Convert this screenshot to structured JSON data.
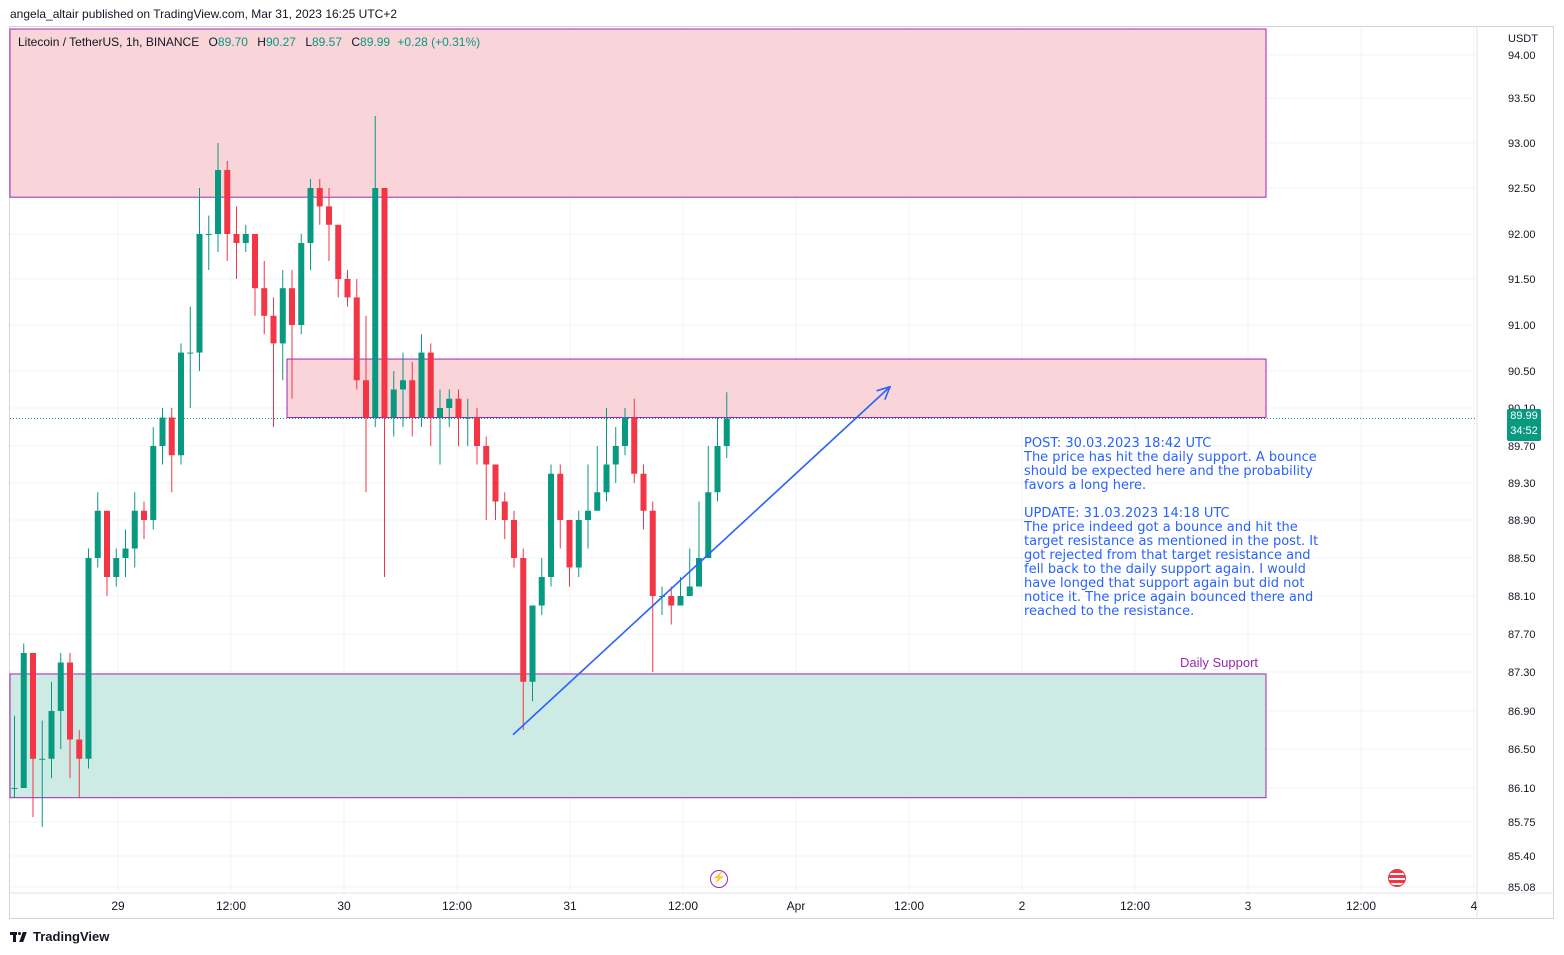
{
  "header": {
    "text": "angela_altair published on TradingView.com, Mar 31, 2023 16:25 UTC+2"
  },
  "legend": {
    "symbol": "Litecoin / TetherUS, 1h, BINANCE",
    "o_label": "O",
    "o": "89.70",
    "h_label": "H",
    "h": "90.27",
    "l_label": "L",
    "l": "89.57",
    "c_label": "C",
    "c": "89.99",
    "change": "+0.28 (+0.31%)"
  },
  "axis": {
    "unit": "USDT",
    "last_price": "89.99",
    "countdown": "34:52",
    "right_ticks": [
      "94.00",
      "93.50",
      "93.00",
      "92.50",
      "92.00",
      "91.50",
      "91.00",
      "90.50",
      "90.10",
      "89.70",
      "89.30",
      "88.90",
      "88.50",
      "88.10",
      "87.70",
      "87.30",
      "86.90",
      "86.50",
      "86.10",
      "85.75",
      "85.40",
      "85.08"
    ],
    "time_ticks": [
      "29",
      "12:00",
      "30",
      "12:00",
      "31",
      "12:00",
      "Apr",
      "12:00",
      "2",
      "12:00",
      "3",
      "12:00",
      "4"
    ]
  },
  "zones": {
    "daily_support_label": "Daily Support"
  },
  "note": {
    "text": "POST: 30.03.2023 18:42 UTC\nThe price has hit the daily support. A bounce should be expected here and the probability favors a long here.\n\nUPDATE: 31.03.2023 14:18 UTC\nThe price indeed got a bounce and hit the target resistance as mentioned in the post. It got rejected from that target resistance and fell back to the daily support again. I would have longed that support again but did not notice it. The price again bounced there and reached to the resistance."
  },
  "footer": {
    "brand": "TradingView"
  },
  "colors": {
    "up": "#089981",
    "down": "#f23645",
    "resistance_fill": "#f9d4d8",
    "support_fill": "#cdebe4",
    "zone_border": "#9c27b0",
    "arrow": "#2962ff"
  },
  "chart_data": {
    "type": "candlestick",
    "title": "Litecoin / TetherUS, 1h, BINANCE",
    "ylabel": "USDT",
    "ylim": [
      85.0,
      94.1
    ],
    "zones": [
      {
        "name": "upper-resistance",
        "low": 92.4,
        "high": 94.2
      },
      {
        "name": "target-resistance",
        "low": 90.0,
        "high": 90.63
      },
      {
        "name": "daily-support",
        "low": 86.0,
        "high": 87.28
      }
    ],
    "trend_arrow": {
      "from": [
        2.7,
        86.65
      ],
      "to": [
        10.8,
        90.33
      ]
    },
    "candles": [
      [
        86.1,
        86.1,
        86.85,
        86.0
      ],
      [
        86.1,
        87.5,
        87.6,
        86.1
      ],
      [
        87.5,
        86.4,
        87.5,
        85.8
      ],
      [
        86.4,
        86.4,
        86.8,
        85.7
      ],
      [
        86.4,
        86.9,
        87.2,
        86.2
      ],
      [
        86.9,
        87.4,
        87.5,
        86.5
      ],
      [
        87.4,
        86.6,
        87.5,
        86.2
      ],
      [
        86.6,
        86.4,
        86.7,
        86.0
      ],
      [
        86.4,
        88.5,
        88.6,
        86.3
      ],
      [
        88.5,
        89.0,
        89.2,
        88.4
      ],
      [
        89.0,
        88.3,
        89.0,
        88.1
      ],
      [
        88.3,
        88.5,
        88.6,
        88.2
      ],
      [
        88.5,
        88.6,
        88.8,
        88.3
      ],
      [
        88.6,
        89.0,
        89.2,
        88.4
      ],
      [
        89.0,
        88.9,
        89.1,
        88.7
      ],
      [
        88.9,
        89.7,
        89.9,
        88.8
      ],
      [
        89.7,
        90.0,
        90.1,
        89.5
      ],
      [
        90.0,
        89.6,
        90.1,
        89.2
      ],
      [
        89.6,
        90.7,
        90.8,
        89.5
      ],
      [
        90.7,
        90.7,
        91.2,
        90.1
      ],
      [
        90.7,
        92.0,
        92.5,
        90.5
      ],
      [
        92.0,
        92.0,
        92.2,
        91.6
      ],
      [
        92.0,
        92.7,
        93.0,
        91.8
      ],
      [
        92.7,
        92.0,
        92.8,
        91.7
      ],
      [
        92.0,
        91.9,
        92.3,
        91.5
      ],
      [
        91.9,
        92.0,
        92.1,
        91.8
      ],
      [
        92.0,
        91.4,
        92.0,
        91.1
      ],
      [
        91.4,
        91.1,
        91.7,
        90.9
      ],
      [
        91.1,
        90.8,
        91.3,
        89.9
      ],
      [
        90.8,
        91.4,
        91.6,
        90.4
      ],
      [
        91.4,
        91.0,
        91.6,
        90.2
      ],
      [
        91.0,
        91.9,
        92.0,
        90.9
      ],
      [
        91.9,
        92.5,
        92.6,
        91.6
      ],
      [
        92.5,
        92.3,
        92.6,
        92.1
      ],
      [
        92.3,
        92.1,
        92.5,
        91.7
      ],
      [
        92.1,
        91.5,
        92.1,
        91.3
      ],
      [
        91.5,
        91.3,
        91.6,
        91.2
      ],
      [
        91.3,
        90.4,
        91.5,
        90.3
      ],
      [
        90.4,
        90.0,
        91.1,
        89.2
      ],
      [
        90.0,
        92.5,
        93.3,
        89.9
      ],
      [
        92.5,
        90.0,
        92.5,
        88.3
      ],
      [
        90.0,
        90.3,
        90.5,
        89.8
      ],
      [
        90.3,
        90.4,
        90.7,
        89.9
      ],
      [
        90.4,
        90.0,
        90.6,
        89.8
      ],
      [
        90.0,
        90.7,
        90.9,
        89.9
      ],
      [
        90.7,
        90.0,
        90.8,
        89.7
      ],
      [
        90.0,
        90.1,
        90.3,
        89.5
      ],
      [
        90.1,
        90.2,
        90.3,
        89.9
      ],
      [
        90.2,
        90.0,
        90.3,
        89.7
      ],
      [
        90.0,
        90.0,
        90.2,
        89.7
      ],
      [
        90.0,
        89.7,
        90.1,
        89.5
      ],
      [
        89.7,
        89.5,
        89.8,
        88.9
      ],
      [
        89.5,
        89.1,
        89.5,
        88.9
      ],
      [
        89.1,
        88.9,
        89.2,
        88.7
      ],
      [
        88.9,
        88.5,
        89.0,
        88.4
      ],
      [
        88.5,
        87.2,
        88.6,
        86.7
      ],
      [
        87.2,
        88.0,
        88.0,
        87.0
      ],
      [
        88.0,
        88.3,
        88.5,
        87.9
      ],
      [
        88.3,
        89.4,
        89.5,
        88.2
      ],
      [
        89.4,
        88.9,
        89.5,
        88.6
      ],
      [
        88.9,
        88.4,
        88.9,
        88.2
      ],
      [
        88.4,
        88.9,
        89.0,
        88.3
      ],
      [
        88.9,
        89.0,
        89.5,
        88.6
      ],
      [
        89.0,
        89.2,
        89.7,
        89.0
      ],
      [
        89.2,
        89.5,
        90.1,
        89.1
      ],
      [
        89.5,
        89.7,
        89.9,
        89.3
      ],
      [
        89.7,
        90.0,
        90.1,
        89.6
      ],
      [
        90.0,
        89.4,
        90.2,
        89.3
      ],
      [
        89.4,
        89.0,
        89.5,
        88.8
      ],
      [
        89.0,
        88.1,
        89.1,
        87.3
      ],
      [
        88.1,
        88.1,
        88.2,
        87.9
      ],
      [
        88.1,
        88.0,
        88.2,
        87.8
      ],
      [
        88.0,
        88.1,
        88.3,
        88.0
      ],
      [
        88.1,
        88.2,
        88.6,
        88.1
      ],
      [
        88.2,
        88.5,
        89.1,
        88.3
      ],
      [
        88.5,
        89.2,
        89.7,
        88.9
      ],
      [
        89.2,
        89.7,
        90.0,
        89.1
      ],
      [
        89.7,
        89.99,
        90.27,
        89.57
      ]
    ]
  }
}
